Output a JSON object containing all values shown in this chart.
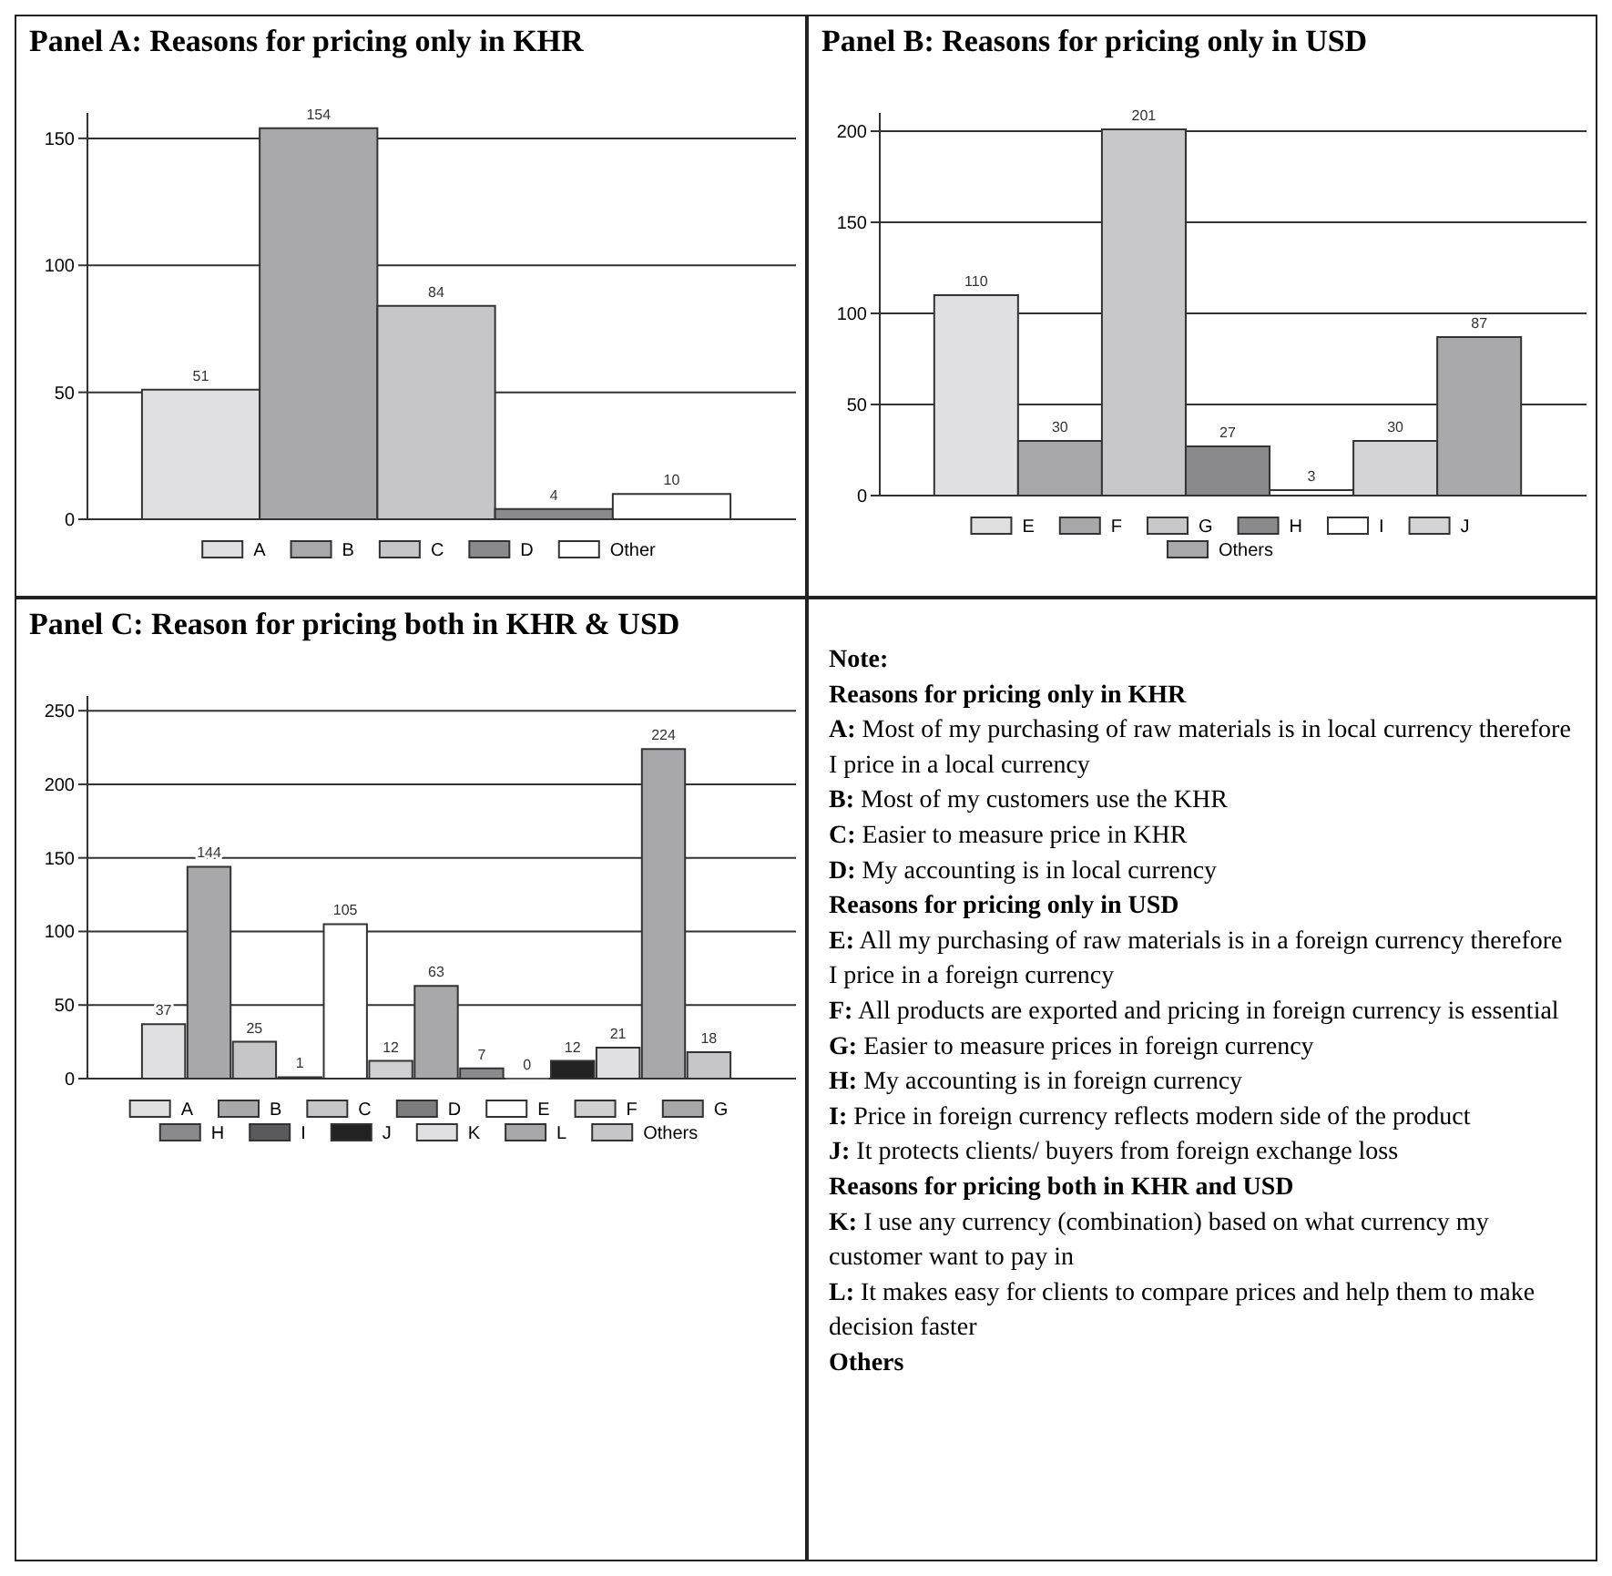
{
  "chart_data": [
    {
      "type": "bar",
      "title": "Panel A: Reasons for pricing only in KHR",
      "categories": [
        null
      ],
      "ylim": [
        0,
        160
      ],
      "yticks": [
        0,
        50,
        100,
        150
      ],
      "tick_labels": "y",
      "grid": "y",
      "legend": "bottom",
      "data_labels": true,
      "series": [
        {
          "name": "A",
          "color": "#e0e0e2",
          "values": [
            51
          ]
        },
        {
          "name": "B",
          "color": "#a9a9ab",
          "values": [
            154
          ]
        },
        {
          "name": "C",
          "color": "#c6c6c8",
          "values": [
            84
          ]
        },
        {
          "name": "D",
          "color": "#8a8a8c",
          "values": [
            4
          ]
        },
        {
          "name": "Other",
          "color": "#ffffff",
          "values": [
            10
          ]
        }
      ]
    },
    {
      "type": "bar",
      "title": "Panel B: Reasons for pricing only in USD",
      "categories": [
        null
      ],
      "ylim": [
        0,
        210
      ],
      "yticks": [
        0,
        50,
        100,
        150,
        200
      ],
      "tick_labels": "y",
      "grid": "y",
      "legend": "bottom",
      "data_labels": true,
      "series": [
        {
          "name": "E",
          "color": "#e0e0e2",
          "values": [
            110
          ]
        },
        {
          "name": "F",
          "color": "#a8a8aa",
          "values": [
            30
          ]
        },
        {
          "name": "G",
          "color": "#c8c8ca",
          "values": [
            201
          ]
        },
        {
          "name": "H",
          "color": "#8a8a8c",
          "values": [
            27
          ]
        },
        {
          "name": "I",
          "color": "#ffffff",
          "values": [
            3
          ]
        },
        {
          "name": "J",
          "color": "#d4d4d6",
          "values": [
            30
          ]
        },
        {
          "name": "Others",
          "color": "#a9a9ab",
          "values": [
            87
          ]
        }
      ]
    },
    {
      "type": "bar",
      "title": "Panel C: Reason for pricing both in KHR & USD",
      "categories": [
        null
      ],
      "ylim": [
        0,
        260
      ],
      "yticks": [
        0,
        50,
        100,
        150,
        200,
        250
      ],
      "tick_labels": "y",
      "grid": "y",
      "legend": "bottom",
      "data_labels": true,
      "series": [
        {
          "name": "A",
          "color": "#e0e0e2",
          "values": [
            37
          ]
        },
        {
          "name": "B",
          "color": "#a8a8aa",
          "values": [
            144
          ]
        },
        {
          "name": "C",
          "color": "#c6c6c8",
          "values": [
            25
          ]
        },
        {
          "name": "D",
          "color": "#7d7d7f",
          "values": [
            1
          ]
        },
        {
          "name": "E",
          "color": "#ffffff",
          "values": [
            105
          ]
        },
        {
          "name": "F",
          "color": "#d0d0d2",
          "values": [
            12
          ]
        },
        {
          "name": "G",
          "color": "#a8a8aa",
          "values": [
            63
          ]
        },
        {
          "name": "H",
          "color": "#8a8a8c",
          "values": [
            7
          ]
        },
        {
          "name": "I",
          "color": "#5a5a5c",
          "values": [
            0
          ]
        },
        {
          "name": "J",
          "color": "#222222",
          "values": [
            12
          ]
        },
        {
          "name": "K",
          "color": "#e0e0e2",
          "values": [
            21
          ]
        },
        {
          "name": "L",
          "color": "#a8a8aa",
          "values": [
            224
          ]
        },
        {
          "name": "Others",
          "color": "#c6c6c8",
          "values": [
            18
          ]
        }
      ]
    },
    {
      "type": "other",
      "title": "Note:",
      "annotations": [
        "Reasons for pricing only in KHR",
        "A: Most of my purchasing of raw materials is in local currency therefore I price in a local currency",
        "B: Most of my customers use the KHR",
        "C: Easier to measure price in KHR",
        "D: My accounting is in local currency",
        "Reasons for pricing only in USD",
        "E: All my purchasing of raw materials is in a foreign currency therefore I price in a foreign currency",
        "F: All products are exported and pricing in foreign currency is essential",
        "G: Easier to measure prices in foreign currency",
        "H: My accounting is in foreign currency",
        "I: Price in foreign currency reflects modern side of the product",
        "J: It protects clients/ buyers from foreign exchange loss",
        "Reasons for pricing both in KHR and USD",
        "K: I use any currency (combination) based on what currency my customer want to pay in",
        "L: It makes easy for clients to compare prices and help them to make decision faster",
        "Others"
      ]
    }
  ]
}
